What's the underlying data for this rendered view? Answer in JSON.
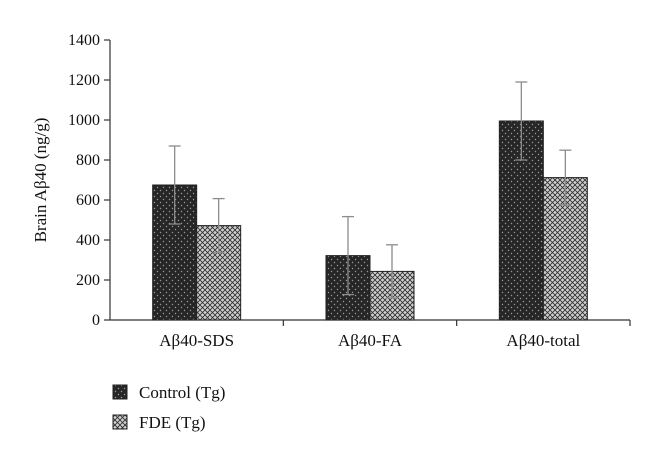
{
  "chart_data": {
    "type": "bar",
    "ylabel": "Brain Aβ40 (ng/g)",
    "ylim": [
      0,
      1400
    ],
    "yticks": [
      0,
      200,
      400,
      600,
      800,
      1000,
      1200,
      1400
    ],
    "ytick_labels": [
      "0",
      "200",
      "400",
      "600",
      "800",
      "1000",
      "1200",
      "1400"
    ],
    "categories": [
      "Aβ40-SDS",
      "Aβ40-FA",
      "Aβ40-total"
    ],
    "series": [
      {
        "name": "Control (Tg)",
        "values": [
          675,
          322,
          995
        ],
        "error": [
          195,
          195,
          195
        ],
        "pattern": "dark-dots"
      },
      {
        "name": "FDE (Tg)",
        "values": [
          472,
          243,
          712
        ],
        "error": [
          135,
          133,
          137
        ],
        "pattern": "light-crosshatch"
      }
    ],
    "legend_position": "bottom-left",
    "grid": false,
    "colors": {
      "control_fill": "#262626",
      "control_dot": "#9a9a9a",
      "fde_fill": "#bdbdbd",
      "fde_hatch": "#2c2c2c",
      "error_bar": "#8c8c8c",
      "axis": "#333333"
    }
  }
}
